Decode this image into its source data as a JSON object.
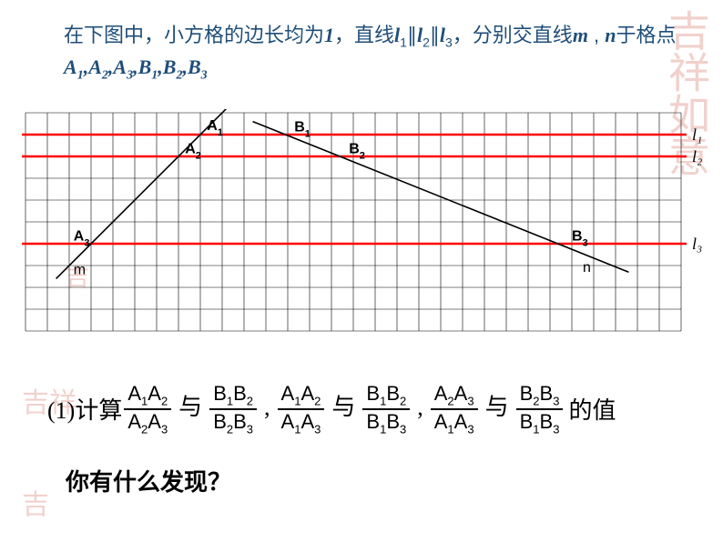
{
  "title_html": "在下图中，小方格的边长均为<b>1</b>，直线<b>l</b><span class='sub'>1</span>∥<b>l</b><span class='sub'>2</span>∥<b>l</b><span class='sub'>3</span>，分别交直线<b>m</b> , <b>n</b>于格点<b>A<span class='sub'>1</span>,A<span class='sub'>2</span>,A<span class='sub'>3</span>,B<span class='sub'>1</span>,B<span class='sub'>2</span>,B<span class='sub'>3</span></b>",
  "grid": {
    "cell": 24,
    "cols": 30,
    "rows": 10,
    "stroke": "#000000",
    "stroke_width": 0.6,
    "background": "#ffffff"
  },
  "red_lines": {
    "color": "#ff0000",
    "width": 2.5,
    "y_rows": [
      1,
      2,
      6
    ],
    "labels": [
      "l₁",
      "l₂",
      "l₃"
    ]
  },
  "line_m": {
    "label": "m",
    "x1_col": 1.4,
    "y1_row": 7.6,
    "x2_col": 9.6,
    "y2_row": -0.6,
    "points": {
      "A1": [
        8,
        1
      ],
      "A2": [
        7,
        2
      ],
      "A3": [
        3,
        6
      ]
    },
    "label_pos": [
      2.2,
      7.4
    ]
  },
  "line_n": {
    "label": "n",
    "x1_col": 10.4,
    "y1_row": 0.4,
    "x2_col": 27.6,
    "y2_row": 7.3,
    "points": {
      "B1": [
        12,
        1
      ],
      "B2": [
        14.5,
        2
      ],
      "B3": [
        24.5,
        6
      ]
    },
    "label_pos": [
      25.5,
      7.3
    ]
  },
  "point_labels": [
    {
      "text": "A₁",
      "col": 8.3,
      "row": 0.8
    },
    {
      "text": "A₂",
      "col": 7.3,
      "row": 1.85
    },
    {
      "text": "A₃",
      "col": 2.2,
      "row": 5.85
    },
    {
      "text": "B₁",
      "col": 12.3,
      "row": 0.85
    },
    {
      "text": "B₂",
      "col": 14.8,
      "row": 1.85
    },
    {
      "text": "B₃",
      "col": 25.0,
      "row": 5.85
    }
  ],
  "fracs": [
    {
      "num": "A₁A₂",
      "den": "A₂A₃"
    },
    {
      "num": "B₁B₂",
      "den": "B₂B₃"
    },
    {
      "num": "A₁A₂",
      "den": "A₁A₃"
    },
    {
      "num": "B₁B₂",
      "den": "B₁B₃"
    },
    {
      "num": "A₂A₃",
      "den": "A₁A₃"
    },
    {
      "num": "B₂B₃",
      "den": "B₁B₃"
    }
  ],
  "q_prefix": "(1)计算",
  "conj_and": "与",
  "comma": ",",
  "q_suffix": "的值",
  "discover": "你有什么发现？",
  "line_label_color": "#000000",
  "line_label_font": "italic 18px 'Times New Roman', serif"
}
